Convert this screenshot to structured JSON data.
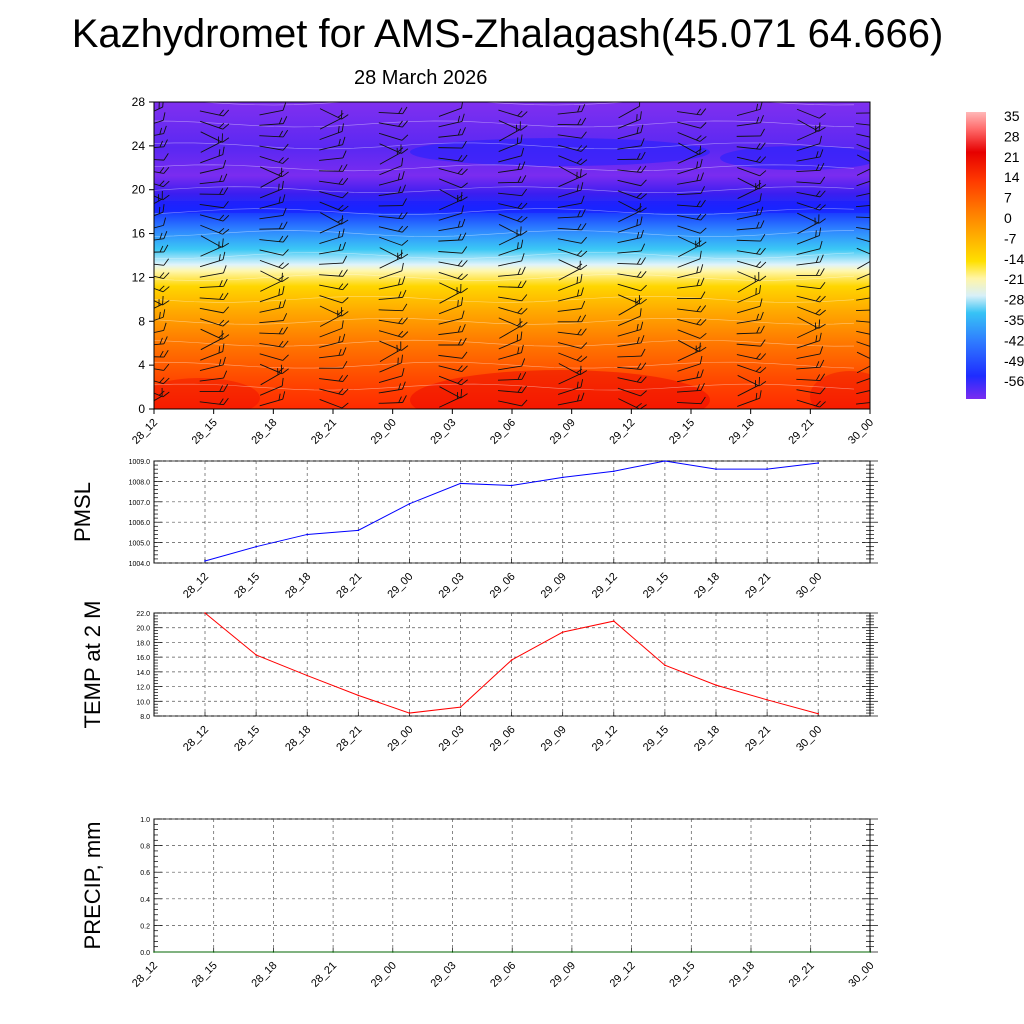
{
  "title": "Kazhydromet for AMS-Zhalagash(45.071 64.666)",
  "subtitle": "28 March 2026",
  "colors": {
    "pmsl_line": "#0000ff",
    "temp_line": "#ff0000",
    "precip_line": "#006400",
    "frame": "#000000",
    "grid": "#555555"
  },
  "chart_data": [
    {
      "type": "heatmap",
      "name": "temperature-cross-section",
      "x_labels": [
        "28_12",
        "28_15",
        "28_18",
        "28_21",
        "29_00",
        "29_03",
        "29_06",
        "29_09",
        "29_12",
        "29_15",
        "29_18",
        "29_21",
        "30_00"
      ],
      "yticks": [
        0,
        4,
        8,
        12,
        16,
        20,
        24,
        28
      ],
      "ylim": [
        0,
        28
      ],
      "z_levels": [
        0,
        2,
        4,
        6,
        8,
        10,
        12,
        14,
        16,
        18,
        20,
        22,
        24,
        26,
        28
      ],
      "z_temperatures": [
        21,
        17,
        12,
        7,
        2,
        -3,
        -10,
        -22,
        -38,
        -52,
        -57,
        -56,
        -54,
        -55,
        -56
      ],
      "colorbar_labels": [
        "35",
        "28",
        "21",
        "14",
        "7",
        "0",
        "-7",
        "-14",
        "-21",
        "-28",
        "-35",
        "-42",
        "-49",
        "-56"
      ],
      "colorbar_range": [
        -56,
        35
      ]
    },
    {
      "type": "line",
      "name": "pmsl",
      "ylabel": "PMSL",
      "x": [
        "28_12",
        "28_15",
        "28_18",
        "28_21",
        "29_00",
        "29_03",
        "29_06",
        "29_09",
        "29_12",
        "29_15",
        "29_18",
        "29_21",
        "30_00"
      ],
      "y": [
        1004.1,
        1004.8,
        1005.4,
        1005.6,
        1006.9,
        1007.9,
        1007.8,
        1008.2,
        1008.5,
        1009.0,
        1008.6,
        1008.6,
        1008.9
      ],
      "ylim": [
        1004.0,
        1009.0
      ],
      "yticks": [
        1004.0,
        1005.0,
        1006.0,
        1007.0,
        1008.0,
        1009.0
      ],
      "ytick_labels": [
        "1004.0",
        "1005.0",
        "1006.0",
        "1007.0",
        "1008.0",
        "1009.0"
      ],
      "x_labels": [
        "28_12",
        "28_15",
        "28_18",
        "28_21",
        "29_00",
        "29_03",
        "29_06",
        "29_09",
        "29_12",
        "29_15",
        "29_18",
        "29_21",
        "30_00"
      ]
    },
    {
      "type": "line",
      "name": "temp2m",
      "ylabel": "TEMP at 2 M",
      "x": [
        "28_12",
        "28_15",
        "28_18",
        "28_21",
        "29_00",
        "29_03",
        "29_06",
        "29_09",
        "29_12",
        "29_15",
        "29_18",
        "29_21",
        "30_00"
      ],
      "y": [
        22.0,
        16.3,
        13.5,
        10.8,
        8.4,
        9.2,
        15.6,
        19.4,
        20.9,
        14.9,
        12.2,
        10.2,
        8.3
      ],
      "ylim": [
        8.0,
        22.0
      ],
      "yticks": [
        8,
        10,
        12,
        14,
        16,
        18,
        20,
        22
      ],
      "ytick_labels": [
        "8.0",
        "10.0",
        "12.0",
        "14.0",
        "16.0",
        "18.0",
        "20.0",
        "22.0"
      ],
      "x_labels": [
        "28_12",
        "28_15",
        "28_18",
        "28_21",
        "29_00",
        "29_03",
        "29_06",
        "29_09",
        "29_12",
        "29_15",
        "29_18",
        "29_21",
        "30_00"
      ]
    },
    {
      "type": "line",
      "name": "precip",
      "ylabel": "PRECIP, mm",
      "x": [
        "28_12",
        "28_15",
        "28_18",
        "28_21",
        "29_00",
        "29_03",
        "29_06",
        "29_09",
        "29_12",
        "29_15",
        "29_18",
        "29_21",
        "30_00"
      ],
      "y": [
        0,
        0,
        0,
        0,
        0,
        0,
        0,
        0,
        0,
        0,
        0,
        0,
        0
      ],
      "ylim": [
        0.0,
        1.0
      ],
      "yticks": [
        0,
        0.2,
        0.4,
        0.6,
        0.8,
        1.0
      ],
      "ytick_labels": [
        "0.0",
        "0.2",
        "0.4",
        "0.6",
        "0.8",
        "1.0"
      ],
      "x_labels": [
        "28_12",
        "28_15",
        "28_18",
        "28_21",
        "29_00",
        "29_03",
        "29_06",
        "29_09",
        "29_12",
        "29_15",
        "29_18",
        "29_21",
        "30_00"
      ]
    }
  ]
}
